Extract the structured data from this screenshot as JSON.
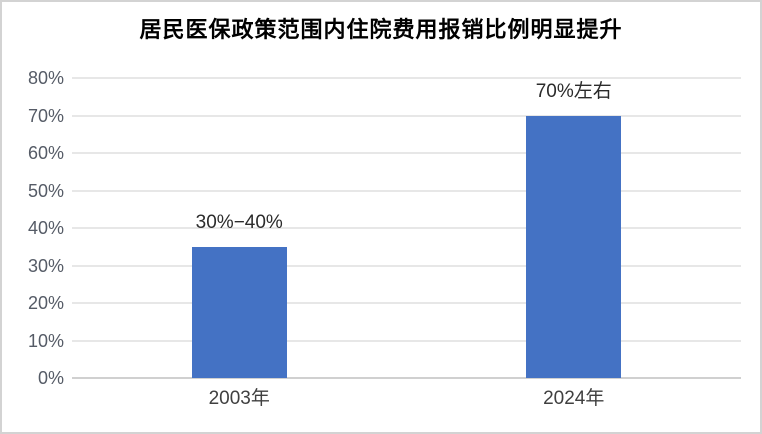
{
  "chart": {
    "title": "居民医保政策范围内住院费用报销比例明显提升",
    "colors": {
      "bar": "#4472c4",
      "gridline": "#e7e7e7",
      "axis_line": "#d0d0d0",
      "tick_text": "#555b66",
      "data_label_text": "#2b2b2b",
      "x_label_text": "#404040",
      "frame_border": "#d3d3d3",
      "background": "#ffffff",
      "title_text": "#000000"
    }
  },
  "chart_data": {
    "type": "bar",
    "title": "居民医保政策范围内住院费用报销比例明显提升",
    "categories": [
      "2003年",
      "2024年"
    ],
    "values": [
      35,
      70
    ],
    "data_labels": [
      "30%−40%",
      "70%左右"
    ],
    "xlabel": "",
    "ylabel": "",
    "ylim": [
      0,
      80
    ],
    "y_tick_step": 10,
    "y_tick_labels": [
      "0%",
      "10%",
      "20%",
      "30%",
      "40%",
      "50%",
      "60%",
      "70%",
      "80%"
    ],
    "grid": "horizontal",
    "legend": "none",
    "bar_color": "#4472c4"
  }
}
